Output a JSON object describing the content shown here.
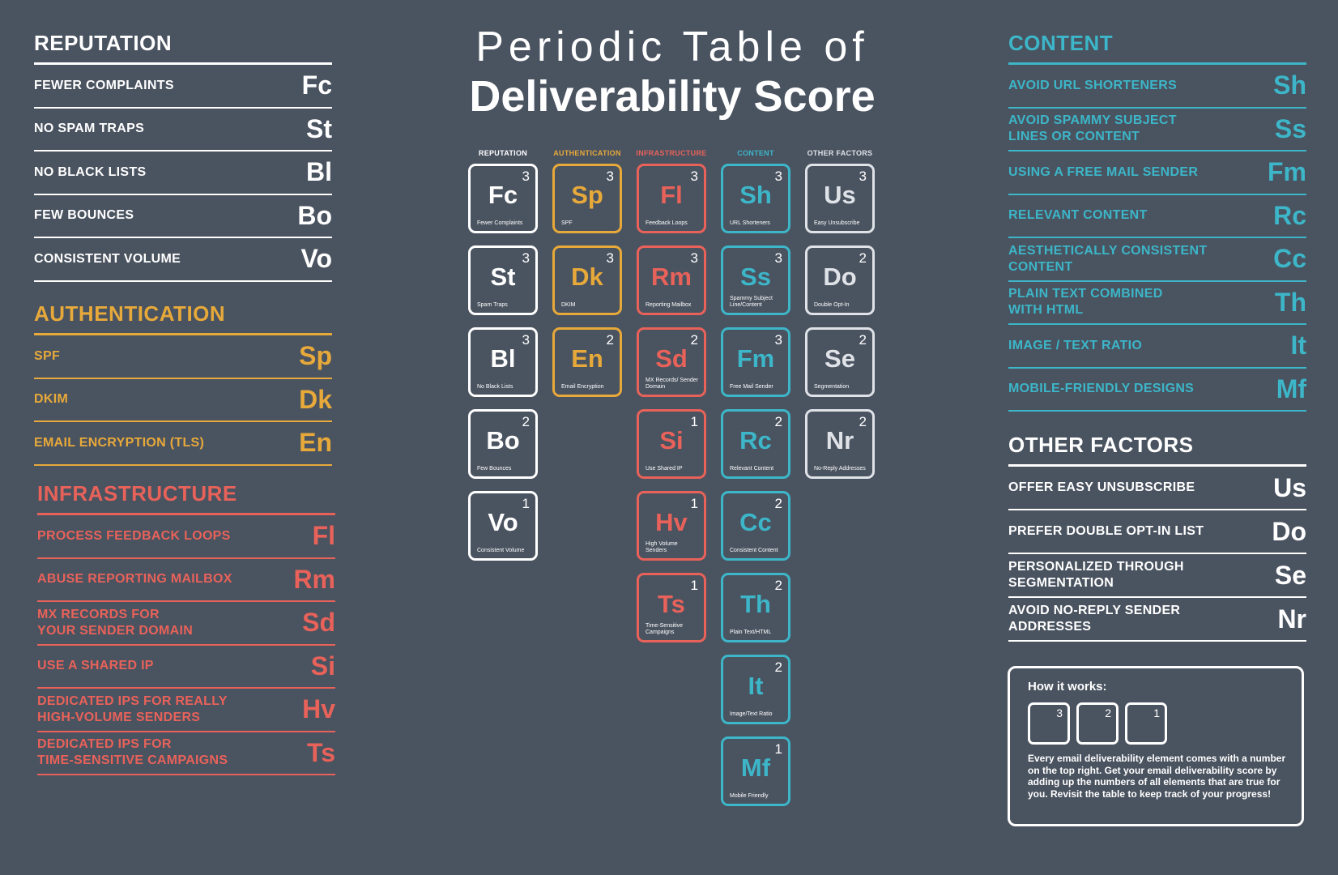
{
  "title": {
    "line1": "Periodic Table of",
    "line2": "Deliverability Score"
  },
  "reputation": {
    "title": "REPUTATION",
    "items": [
      {
        "label": "FEWER COMPLAINTS",
        "symbol": "Fc"
      },
      {
        "label": "NO SPAM TRAPS",
        "symbol": "St"
      },
      {
        "label": "NO BLACK LISTS",
        "symbol": "Bl"
      },
      {
        "label": "FEW BOUNCES",
        "symbol": "Bo"
      },
      {
        "label": "CONSISTENT VOLUME",
        "symbol": "Vo"
      }
    ]
  },
  "authentication": {
    "title": "AUTHENTICATION",
    "items": [
      {
        "label": "SPF",
        "symbol": "Sp"
      },
      {
        "label": "DKIM",
        "symbol": "Dk"
      },
      {
        "label": "EMAIL ENCRYPTION (TLS)",
        "symbol": "En"
      }
    ]
  },
  "infrastructure": {
    "title": "INFRASTRUCTURE",
    "items": [
      {
        "label": "PROCESS FEEDBACK LOOPS",
        "symbol": "Fl"
      },
      {
        "label": "ABUSE REPORTING MAILBOX",
        "symbol": "Rm"
      },
      {
        "label": "MX RECORDS FOR\nYOUR SENDER DOMAIN",
        "symbol": "Sd"
      },
      {
        "label": "USE A SHARED IP",
        "symbol": "Si"
      },
      {
        "label": "DEDICATED IPS FOR REALLY\nHIGH-VOLUME SENDERS",
        "symbol": "Hv"
      },
      {
        "label": "DEDICATED IPS FOR\nTIME-SENSITIVE CAMPAIGNS",
        "symbol": "Ts"
      }
    ]
  },
  "content": {
    "title": "CONTENT",
    "items": [
      {
        "label": "AVOID URL SHORTENERS",
        "symbol": "Sh"
      },
      {
        "label": "AVOID SPAMMY SUBJECT\nLINES OR CONTENT",
        "symbol": "Ss"
      },
      {
        "label": "USING A FREE MAIL SENDER",
        "symbol": "Fm"
      },
      {
        "label": "RELEVANT CONTENT",
        "symbol": "Rc"
      },
      {
        "label": "AESTHETICALLY CONSISTENT\nCONTENT",
        "symbol": "Cc"
      },
      {
        "label": "PLAIN TEXT COMBINED\nWITH HTML",
        "symbol": "Th"
      },
      {
        "label": "IMAGE / TEXT RATIO",
        "symbol": "It"
      },
      {
        "label": "MOBILE-FRIENDLY DESIGNS",
        "symbol": "Mf"
      }
    ]
  },
  "other": {
    "title": "OTHER FACTORS",
    "items": [
      {
        "label": "OFFER EASY UNSUBSCRIBE",
        "symbol": "Us"
      },
      {
        "label": "PREFER DOUBLE OPT-IN LIST",
        "symbol": "Do"
      },
      {
        "label": "PERSONALIZED THROUGH\nSEGMENTATION",
        "symbol": "Se"
      },
      {
        "label": "AVOID NO-REPLY SENDER\nADDRESSES",
        "symbol": "Nr"
      }
    ]
  },
  "table": {
    "columns": [
      {
        "header": "REPUTATION",
        "color": "#ffffff",
        "tiles": [
          {
            "symbol": "Fc",
            "num": "3",
            "name": "Fewer Complaints"
          },
          {
            "symbol": "St",
            "num": "3",
            "name": "Spam Traps"
          },
          {
            "symbol": "Bl",
            "num": "3",
            "name": "No Black Lists"
          },
          {
            "symbol": "Bo",
            "num": "2",
            "name": "Few Bounces"
          },
          {
            "symbol": "Vo",
            "num": "1",
            "name": "Consistent Volume"
          }
        ]
      },
      {
        "header": "AUTHENTICATION",
        "color": "#e7a93a",
        "tiles": [
          {
            "symbol": "Sp",
            "num": "3",
            "name": "SPF"
          },
          {
            "symbol": "Dk",
            "num": "3",
            "name": "DKIM"
          },
          {
            "symbol": "En",
            "num": "2",
            "name": "Email Encryption"
          }
        ]
      },
      {
        "header": "INFRASTRUCTURE",
        "color": "#e8625a",
        "tiles": [
          {
            "symbol": "Fl",
            "num": "3",
            "name": "Feedback Loops"
          },
          {
            "symbol": "Rm",
            "num": "3",
            "name": "Reporting Mailbox"
          },
          {
            "symbol": "Sd",
            "num": "2",
            "name": "MX Records/ Sender Domain"
          },
          {
            "symbol": "Si",
            "num": "1",
            "name": "Use Shared IP"
          },
          {
            "symbol": "Hv",
            "num": "1",
            "name": "High Volume Senders"
          },
          {
            "symbol": "Ts",
            "num": "1",
            "name": "Time-Sensitive Campaigns"
          }
        ]
      },
      {
        "header": "CONTENT",
        "color": "#3cb6c8",
        "tiles": [
          {
            "symbol": "Sh",
            "num": "3",
            "name": "URL Shorteners"
          },
          {
            "symbol": "Ss",
            "num": "3",
            "name": "Spammy Subject Line/Content"
          },
          {
            "symbol": "Fm",
            "num": "3",
            "name": "Free Mail Sender"
          },
          {
            "symbol": "Rc",
            "num": "2",
            "name": "Relevant Content"
          },
          {
            "symbol": "Cc",
            "num": "2",
            "name": "Consistent Content"
          },
          {
            "symbol": "Th",
            "num": "2",
            "name": "Plain Text/HTML"
          },
          {
            "symbol": "It",
            "num": "2",
            "name": "Image/Text Ratio"
          },
          {
            "symbol": "Mf",
            "num": "1",
            "name": "Mobile Friendly"
          }
        ]
      },
      {
        "header": "OTHER FACTORS",
        "color": "#dfe3e8",
        "tiles": [
          {
            "symbol": "Us",
            "num": "3",
            "name": "Easy Unsubscribe"
          },
          {
            "symbol": "Do",
            "num": "2",
            "name": "Double Opt-In"
          },
          {
            "symbol": "Se",
            "num": "2",
            "name": "Segmentation"
          },
          {
            "symbol": "Nr",
            "num": "2",
            "name": "No-Reply Addresses"
          }
        ]
      }
    ]
  },
  "how": {
    "title": "How it works:",
    "boxes": [
      "3",
      "2",
      "1"
    ],
    "text": "Every email deliverability element comes with a number on the top right. Get your email deliverability score by adding up the numbers of all elements that are true for you. Revisit the table to keep track of your progress!"
  }
}
